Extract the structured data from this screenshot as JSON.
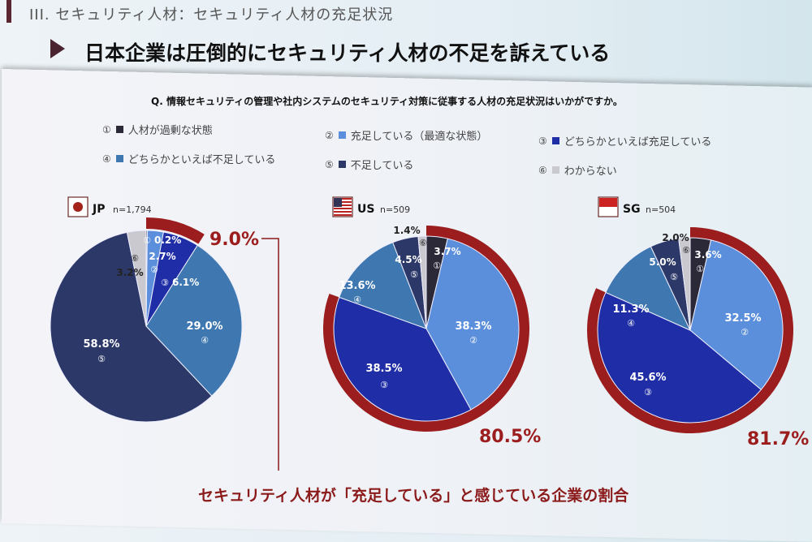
{
  "header": {
    "section": "III. セキュリティ人材：セキュリティ人材の充足状況",
    "headline": "日本企業は圧倒的にセキュリティ人材の不足を訴えている"
  },
  "question": "Q. 情報セキュリティの管理や社内システムのセキュリティ対策に従事する人材の充足状況はいかがですか。",
  "legend": [
    {
      "num": "①",
      "label": "人材が過剰な状態",
      "color": "#2b2838"
    },
    {
      "num": "②",
      "label": "充足している（最適な状態）",
      "color": "#5b8fdc"
    },
    {
      "num": "③",
      "label": "どちらかといえば充足している",
      "color": "#1f2ea6"
    },
    {
      "num": "④",
      "label": "どちらかといえば不足している",
      "color": "#3f78b0"
    },
    {
      "num": "⑤",
      "label": "不足している",
      "color": "#2c3868"
    },
    {
      "num": "⑥",
      "label": "わからない",
      "color": "#c9c9cf"
    }
  ],
  "highlight_color": "#9b1d1d",
  "footer": "セキュリティ人材が「充足している」と感じている企業の割合",
  "chart_data": [
    {
      "type": "pie",
      "country": "JP",
      "n": "n=1,794",
      "categories": [
        "①",
        "②",
        "③",
        "④",
        "⑤",
        "⑥"
      ],
      "values": [
        0.2,
        2.7,
        6.1,
        29.0,
        58.8,
        3.2
      ],
      "labels": [
        "0.2%",
        "2.7%",
        "6.1%",
        "29.0%",
        "58.8%",
        "3.2%"
      ],
      "highlight": "9.0%",
      "highlight_share": 9.0
    },
    {
      "type": "pie",
      "country": "US",
      "n": "n=509",
      "categories": [
        "①",
        "②",
        "③",
        "④",
        "⑤",
        "⑥"
      ],
      "values": [
        3.7,
        38.3,
        38.5,
        13.6,
        4.5,
        1.4
      ],
      "labels": [
        "3.7%",
        "38.3%",
        "38.5%",
        "13.6%",
        "4.5%",
        "1.4%"
      ],
      "highlight": "80.5%",
      "highlight_share": 80.5
    },
    {
      "type": "pie",
      "country": "SG",
      "n": "n=504",
      "categories": [
        "①",
        "②",
        "③",
        "④",
        "⑤",
        "⑥"
      ],
      "values": [
        3.6,
        32.5,
        45.6,
        11.3,
        5.0,
        2.0
      ],
      "labels": [
        "3.6%",
        "32.5%",
        "45.6%",
        "11.3%",
        "5.0%",
        "2.0%"
      ],
      "highlight": "81.7%",
      "highlight_share": 81.7
    }
  ]
}
